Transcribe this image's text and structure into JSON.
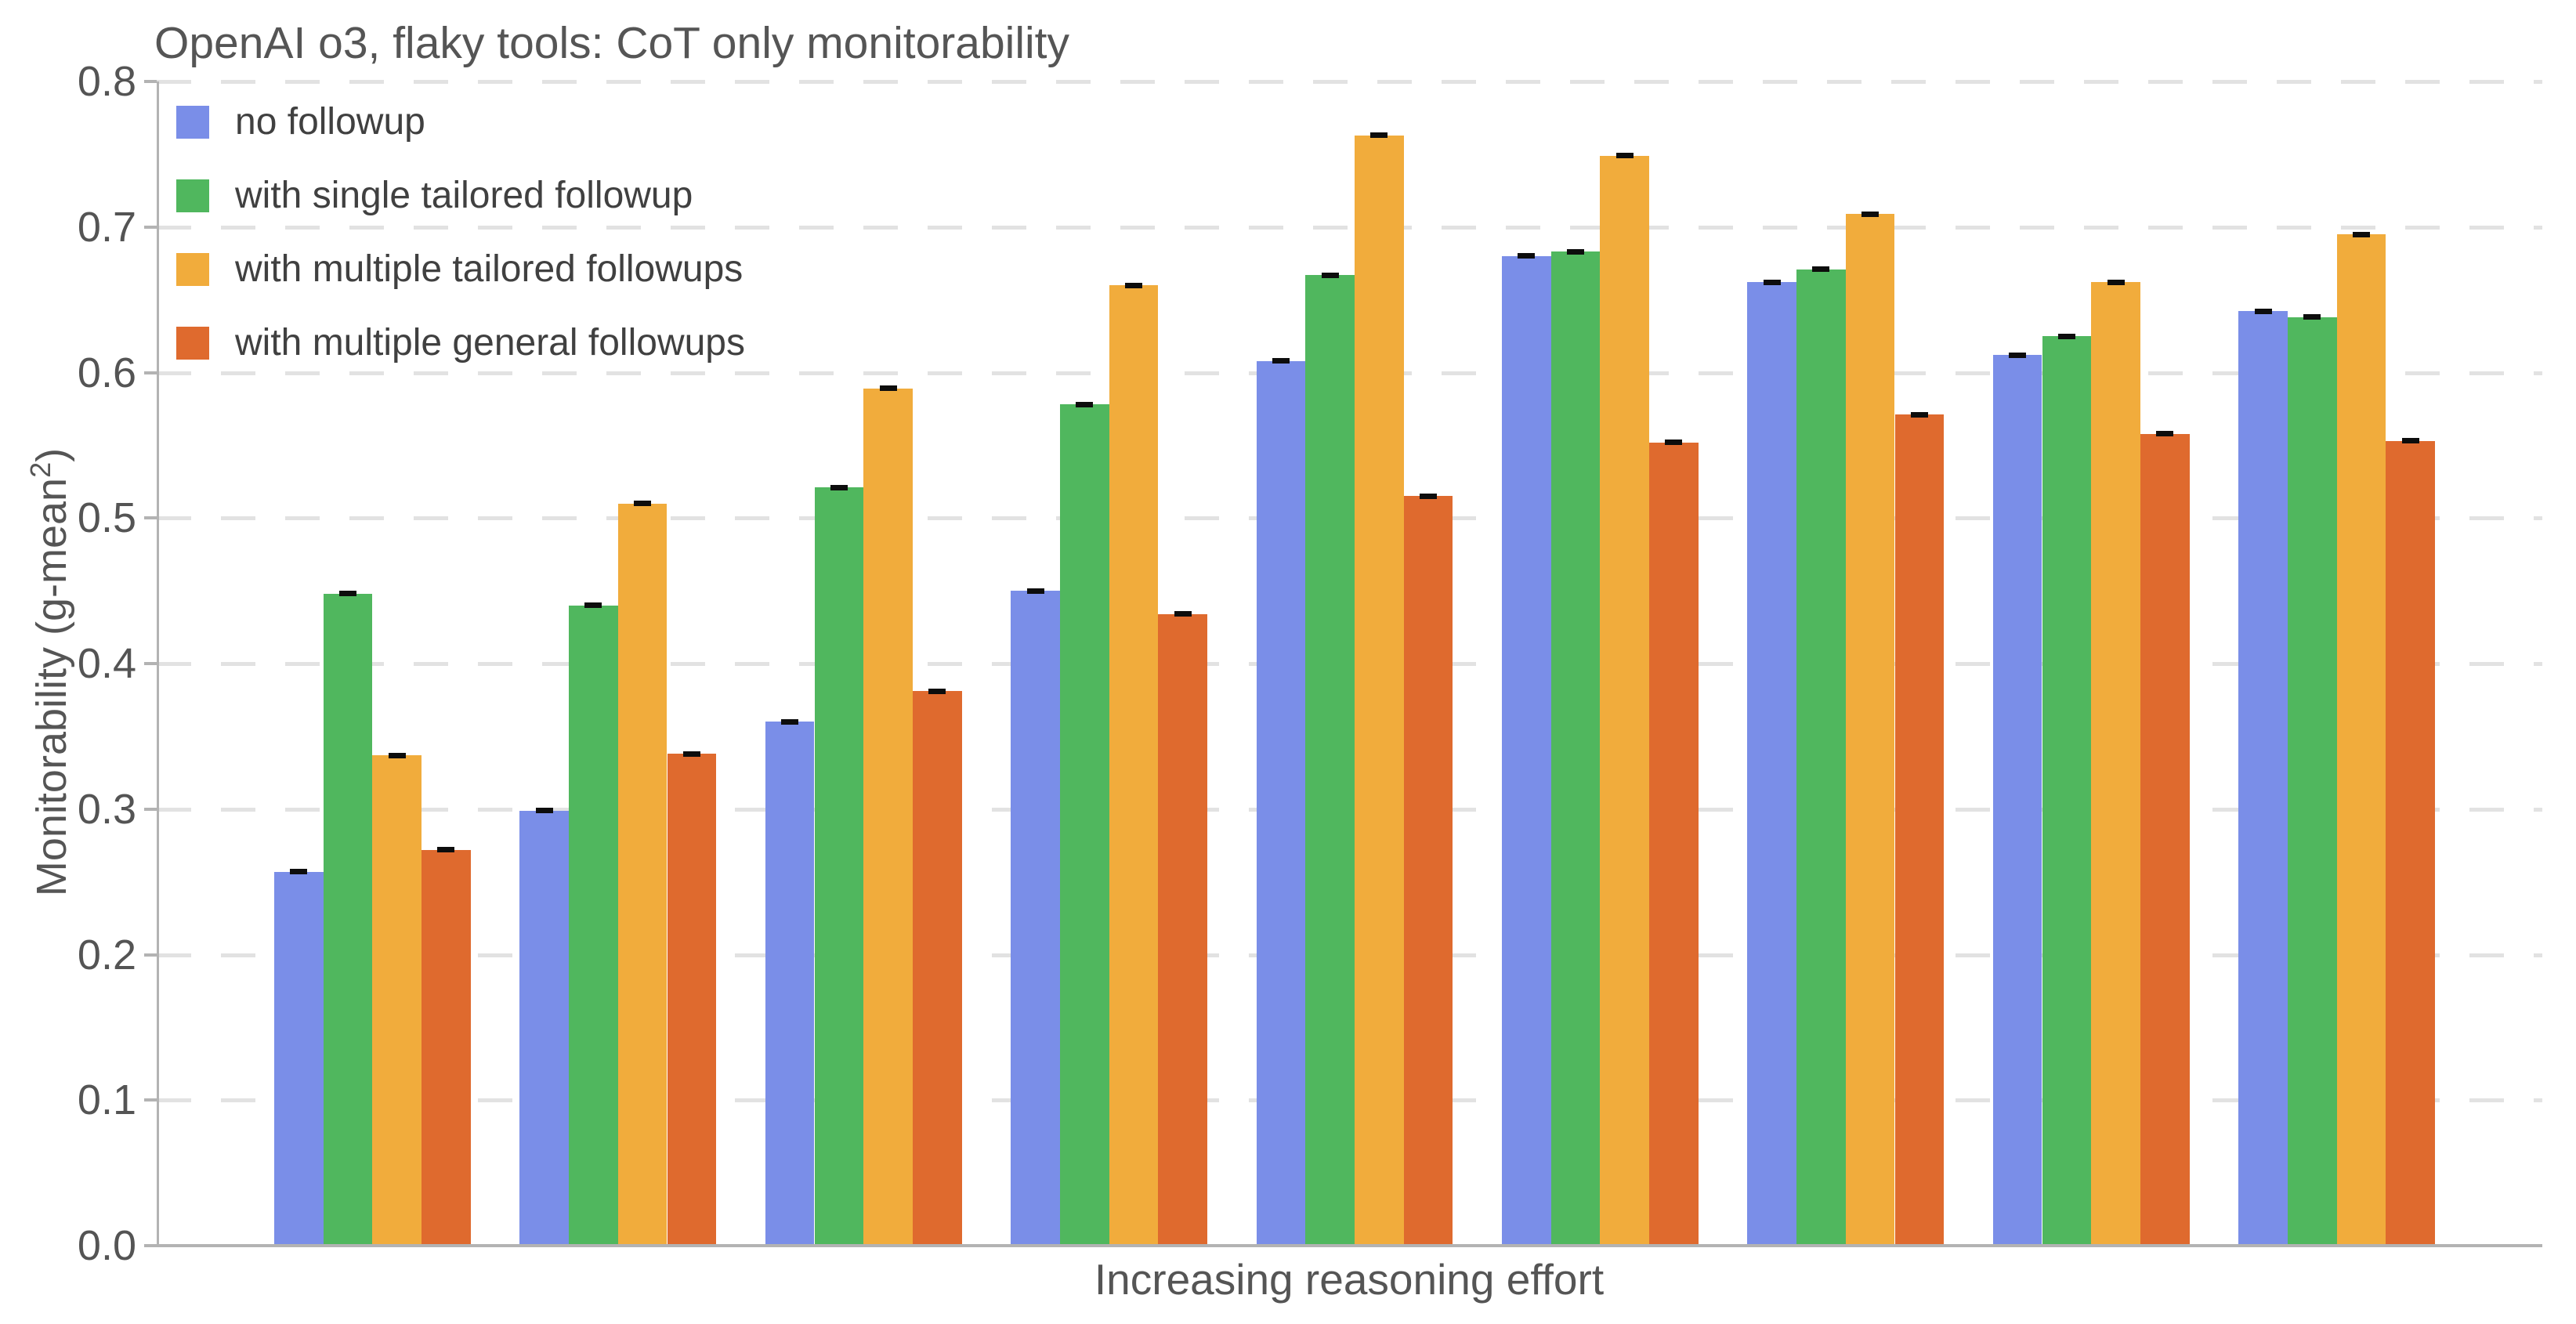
{
  "title": "OpenAI o3, flaky tools: CoT only monitorability",
  "axis": {
    "ylabel_display": {
      "base": "Monitorability (g-mean",
      "sup": "2",
      "close": ")"
    },
    "xlabel": "Increasing reasoning effort",
    "ytick_labels": [
      "0.0",
      "0.1",
      "0.2",
      "0.3",
      "0.4",
      "0.5",
      "0.6",
      "0.7",
      "0.8"
    ]
  },
  "chart_data": {
    "type": "bar",
    "title": "OpenAI o3, flaky tools: CoT only monitorability",
    "xlabel": "Increasing reasoning effort",
    "ylabel": "Monitorability (g-mean²)",
    "ylim": [
      0.0,
      0.8
    ],
    "ytick_step": 0.1,
    "grid": "horizontal dashed",
    "legend_position": "upper left",
    "group_count": 9,
    "categories": [
      "",
      "",
      "",
      "",
      "",
      "",
      "",
      "",
      ""
    ],
    "x_axis_note": "groups unlabeled; x axis represents increasing reasoning effort",
    "series": [
      {
        "name": "no followup",
        "color": "#7a8ee8",
        "values": [
          0.257,
          0.299,
          0.36,
          0.45,
          0.608,
          0.68,
          0.662,
          0.612,
          0.642
        ]
      },
      {
        "name": "with single tailored followup",
        "color": "#50b75e",
        "values": [
          0.448,
          0.44,
          0.521,
          0.578,
          0.667,
          0.683,
          0.671,
          0.625,
          0.638
        ]
      },
      {
        "name": "with multiple tailored followups",
        "color": "#f1ac3c",
        "values": [
          0.337,
          0.51,
          0.589,
          0.66,
          0.763,
          0.749,
          0.709,
          0.662,
          0.695
        ]
      },
      {
        "name": "with multiple general followups",
        "color": "#df6a2e",
        "values": [
          0.272,
          0.338,
          0.381,
          0.434,
          0.515,
          0.552,
          0.571,
          0.558,
          0.553
        ]
      }
    ],
    "error_bars": {
      "shown": true,
      "approx_half_width": 0.004,
      "cap_color": "#0d0d0d"
    }
  },
  "style_colors": {
    "title_text": "#555555",
    "tick_text": "#545454",
    "axis_spine": "#b3b3b3",
    "gridline": "#e2e2e2",
    "background": "#ffffff"
  }
}
